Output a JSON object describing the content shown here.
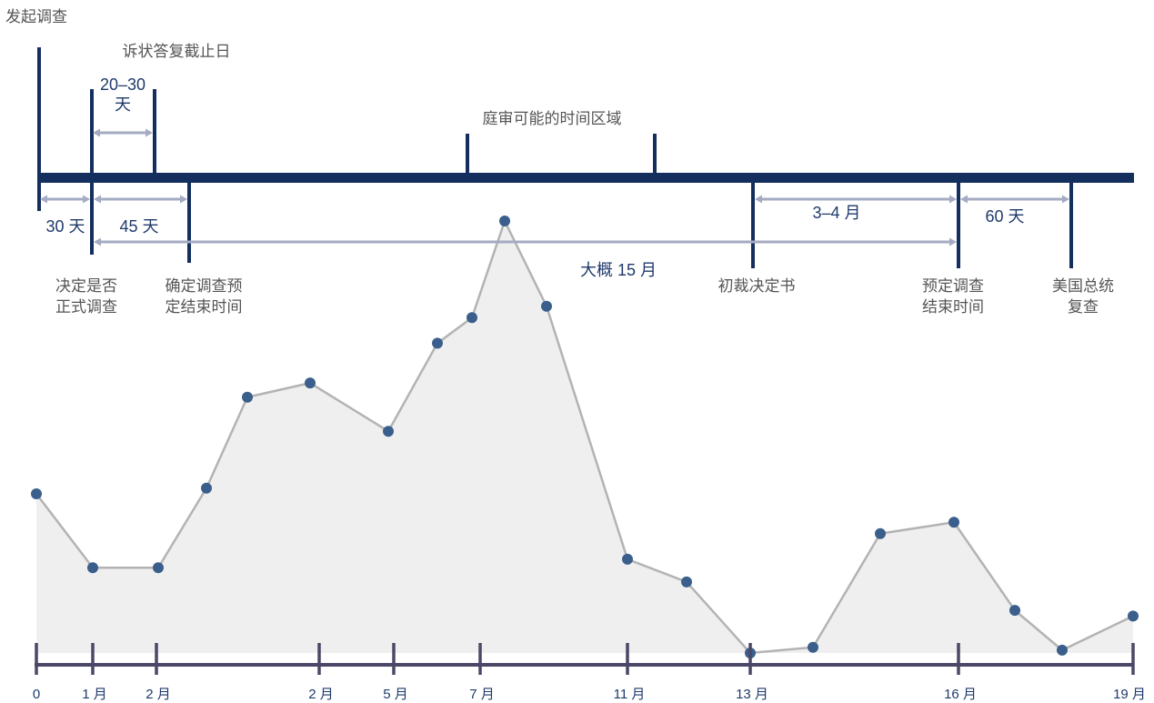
{
  "colors": {
    "timeline": "#142f5e",
    "arrow": "#a4abc2",
    "area": "#efefef",
    "line": "#b3b3b3",
    "point": "#3a5f8c",
    "axis": "#4a4866"
  },
  "timeline": {
    "start_label": "发起调查",
    "events": [
      {
        "name": "decide-formal",
        "lines": [
          "决定是否",
          "正式调查"
        ]
      },
      {
        "name": "confirm-end",
        "lines": [
          "确定调查预",
          "定结束时间"
        ]
      },
      {
        "name": "initial-ruling",
        "lines": [
          "初裁决定书"
        ]
      },
      {
        "name": "scheduled-end",
        "lines": [
          "预定调查",
          "结束时间"
        ]
      },
      {
        "name": "president-review",
        "lines": [
          "美国总统",
          "复查"
        ]
      }
    ],
    "top_labels": {
      "answer_deadline": "诉状答复截止日",
      "answer_days": [
        "20–30",
        "天"
      ],
      "hearing_window": "庭审可能的时间区域"
    },
    "durations": {
      "d30": "30 天",
      "d45": "45 天",
      "d3_4": "3–4 月",
      "d60": "60 天",
      "about15": "大概 15 月"
    }
  },
  "chart_data": {
    "type": "area",
    "x_ticks": [
      "0",
      "1 月",
      "2 月",
      "2 月",
      "5 月",
      "7 月",
      "11 月",
      "13 月",
      "16 月",
      "19 月"
    ],
    "values": [
      56,
      30,
      30,
      58,
      90,
      95,
      78,
      109,
      118,
      152,
      122,
      33,
      25,
      0,
      2,
      42,
      46,
      15,
      1,
      13
    ],
    "ylim": [
      0,
      160
    ]
  }
}
